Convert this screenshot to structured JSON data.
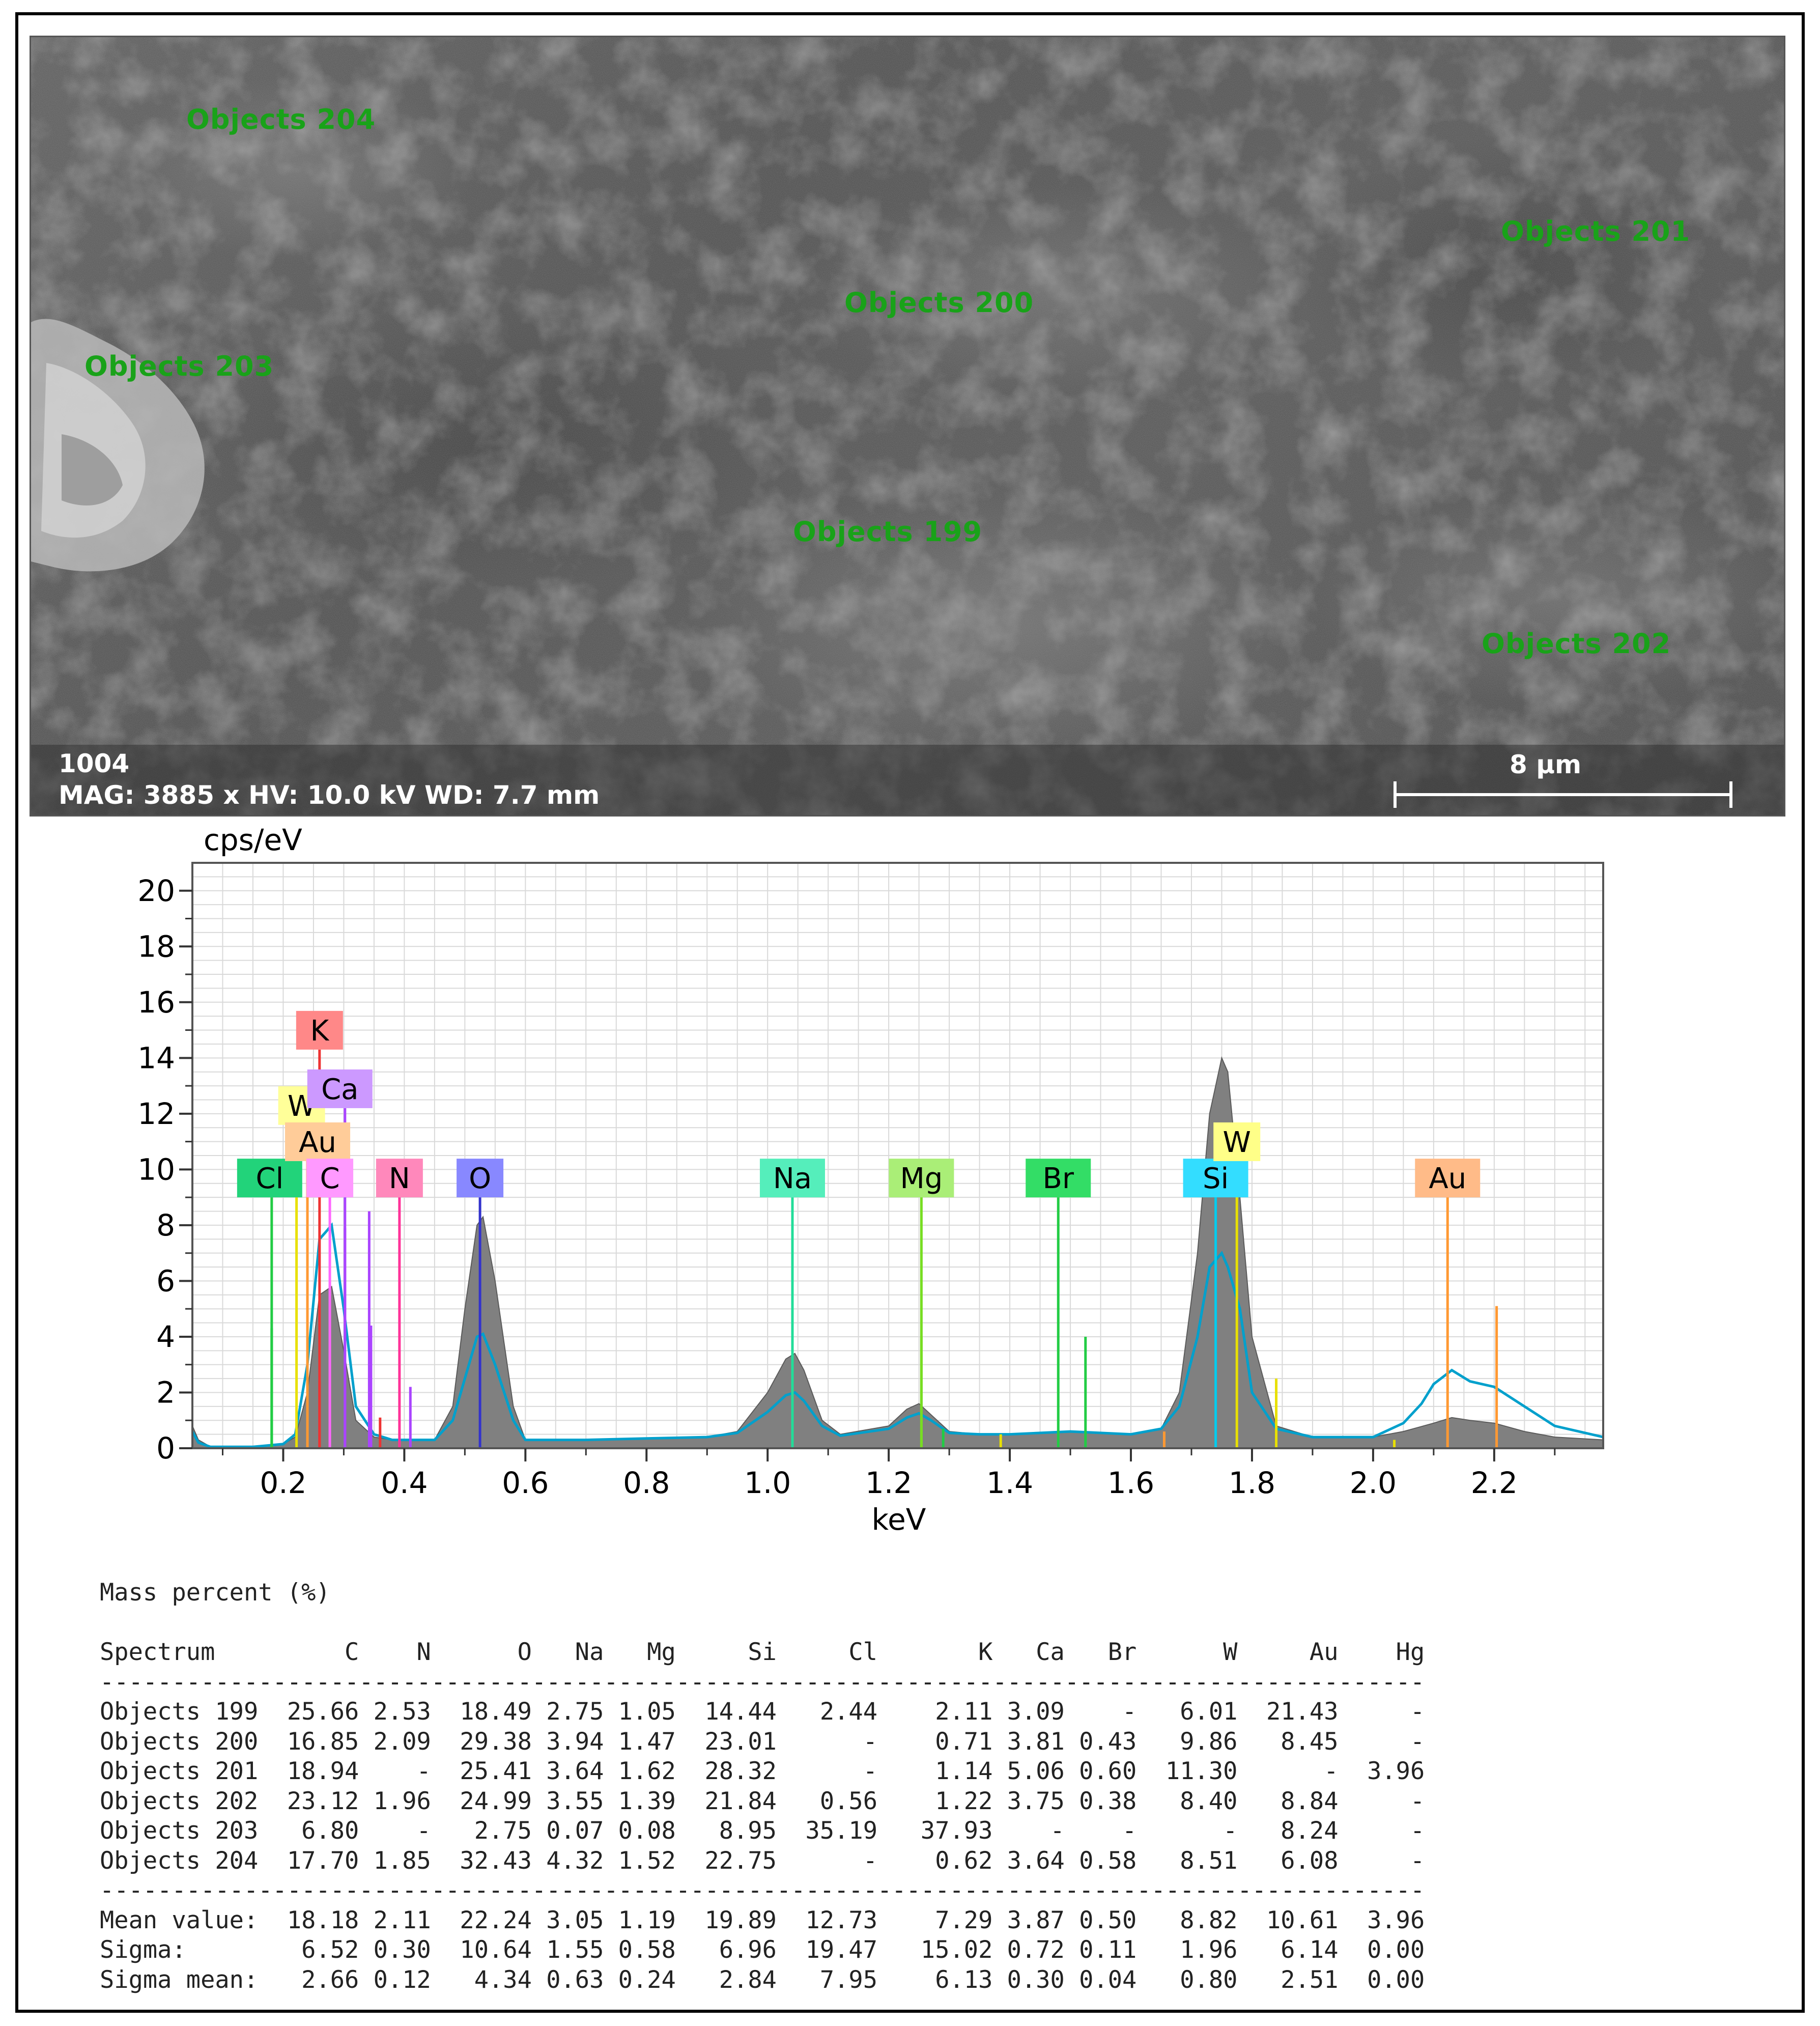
{
  "sem": {
    "objects": [
      {
        "label": "Objects 204"
      },
      {
        "label": "Objects 201"
      },
      {
        "label": "Objects 200"
      },
      {
        "label": "Objects 203"
      },
      {
        "label": "Objects 199"
      },
      {
        "label": "Objects 202"
      }
    ],
    "image_id": "1004",
    "info_line": "MAG: 3885 x  HV: 10.0 kV  WD: 7.7 mm",
    "scale_bar_label": "8 µm"
  },
  "chart_data": {
    "type": "line",
    "ylabel": "cps/eV",
    "xlabel": "keV",
    "xlim": [
      0.05,
      2.38
    ],
    "ylim": [
      0,
      21
    ],
    "xticks": [
      "0.2",
      "0.4",
      "0.6",
      "0.8",
      "1.0",
      "1.2",
      "1.4",
      "1.6",
      "1.8",
      "2.0",
      "2.2"
    ],
    "yticks": [
      "0",
      "2",
      "4",
      "6",
      "8",
      "10",
      "12",
      "14",
      "16",
      "18",
      "20"
    ],
    "grid": true,
    "series": [
      {
        "style": "filled",
        "color": "#808080",
        "x": [
          0.05,
          0.06,
          0.08,
          0.15,
          0.2,
          0.22,
          0.24,
          0.26,
          0.28,
          0.3,
          0.32,
          0.35,
          0.38,
          0.4,
          0.45,
          0.48,
          0.5,
          0.52,
          0.53,
          0.55,
          0.58,
          0.6,
          0.7,
          0.8,
          0.9,
          0.95,
          1.0,
          1.03,
          1.045,
          1.06,
          1.09,
          1.12,
          1.2,
          1.23,
          1.25,
          1.27,
          1.3,
          1.35,
          1.4,
          1.45,
          1.5,
          1.55,
          1.6,
          1.65,
          1.68,
          1.71,
          1.73,
          1.75,
          1.76,
          1.78,
          1.8,
          1.84,
          1.9,
          2.0,
          2.05,
          2.1,
          2.13,
          2.16,
          2.2,
          2.25,
          2.3,
          2.38
        ],
        "y": [
          0.8,
          0.3,
          0.05,
          0.05,
          0.15,
          0.4,
          2.0,
          5.5,
          5.8,
          3.5,
          1.0,
          0.4,
          0.3,
          0.3,
          0.3,
          1.5,
          5.0,
          8.0,
          8.3,
          6.0,
          1.5,
          0.3,
          0.3,
          0.35,
          0.4,
          0.6,
          2.0,
          3.2,
          3.4,
          2.8,
          1.0,
          0.5,
          0.8,
          1.4,
          1.6,
          1.2,
          0.6,
          0.5,
          0.5,
          0.55,
          0.6,
          0.55,
          0.5,
          0.7,
          2.0,
          7.0,
          12.0,
          14.0,
          13.5,
          9.0,
          4.0,
          0.8,
          0.4,
          0.4,
          0.6,
          0.9,
          1.1,
          1.0,
          0.9,
          0.6,
          0.4,
          0.3
        ]
      },
      {
        "style": "line",
        "color": "#00a0cc",
        "x": [
          0.05,
          0.06,
          0.08,
          0.15,
          0.2,
          0.22,
          0.24,
          0.26,
          0.28,
          0.3,
          0.32,
          0.35,
          0.38,
          0.4,
          0.45,
          0.48,
          0.5,
          0.52,
          0.53,
          0.55,
          0.58,
          0.6,
          0.7,
          0.8,
          0.9,
          0.95,
          1.0,
          1.03,
          1.045,
          1.06,
          1.09,
          1.12,
          1.2,
          1.23,
          1.25,
          1.27,
          1.3,
          1.35,
          1.4,
          1.45,
          1.5,
          1.55,
          1.6,
          1.65,
          1.68,
          1.71,
          1.73,
          1.75,
          1.76,
          1.78,
          1.8,
          1.84,
          1.9,
          2.0,
          2.05,
          2.08,
          2.1,
          2.13,
          2.16,
          2.2,
          2.25,
          2.3,
          2.38
        ],
        "y": [
          0.6,
          0.2,
          0.05,
          0.05,
          0.15,
          0.5,
          3.0,
          7.5,
          8.0,
          5.0,
          1.5,
          0.5,
          0.3,
          0.3,
          0.3,
          1.0,
          2.5,
          4.0,
          4.1,
          3.0,
          1.0,
          0.3,
          0.3,
          0.35,
          0.4,
          0.55,
          1.3,
          1.9,
          2.0,
          1.7,
          0.8,
          0.45,
          0.7,
          1.1,
          1.25,
          1.0,
          0.55,
          0.5,
          0.5,
          0.55,
          0.6,
          0.55,
          0.5,
          0.7,
          1.5,
          4.0,
          6.5,
          7.0,
          6.5,
          5.0,
          2.0,
          0.7,
          0.4,
          0.4,
          0.9,
          1.6,
          2.3,
          2.8,
          2.4,
          2.2,
          1.5,
          0.8,
          0.4
        ]
      }
    ],
    "element_lines": [
      {
        "el": "Cl",
        "x": 0.181,
        "color": "#22cc44",
        "label_color": "#22d37a"
      },
      {
        "el": "W",
        "x": 0.222,
        "color": "#e8e000",
        "label_color": "#ffff99"
      },
      {
        "el": "Au",
        "x": 0.24,
        "color": "#ff9933",
        "label_color": "#ffcc99"
      },
      {
        "el": "K",
        "x": 0.26,
        "color": "#ee3333",
        "label_color": "#ff8888"
      },
      {
        "el": "C",
        "x": 0.277,
        "color": "#ff66ff",
        "label_color": "#ff99ff"
      },
      {
        "el": "Ca",
        "x": 0.302,
        "color": "#aa44ff",
        "label_color": "#cc99ff"
      },
      {
        "el": "N",
        "x": 0.392,
        "color": "#ff3399",
        "label_color": "#ff88bb"
      },
      {
        "el": "O",
        "x": 0.525,
        "color": "#3333cc",
        "label_color": "#8888ff"
      },
      {
        "el": "Na",
        "x": 1.041,
        "color": "#22dd99",
        "label_color": "#55eebb"
      },
      {
        "el": "Mg",
        "x": 1.254,
        "color": "#77dd22",
        "label_color": "#aaee77"
      },
      {
        "el": "Br",
        "x": 1.48,
        "color": "#22cc44",
        "label_color": "#33dd66"
      },
      {
        "el": "Si",
        "x": 1.74,
        "color": "#00ccee",
        "label_color": "#33ddff"
      },
      {
        "el": "W",
        "x": 1.775,
        "color": "#e8e000",
        "label_color": "#ffff88"
      },
      {
        "el": "Au",
        "x": 2.123,
        "color": "#ff9933",
        "label_color": "#ffbb88"
      }
    ],
    "minor_lines": [
      {
        "x": 0.181,
        "y": 4.3,
        "color": "#22cc44"
      },
      {
        "x": 0.26,
        "y": 2.4,
        "color": "#ee3333"
      },
      {
        "x": 0.302,
        "y": 7.9,
        "color": "#aa44ff"
      },
      {
        "x": 0.342,
        "y": 8.5,
        "color": "#aa44ff"
      },
      {
        "x": 0.345,
        "y": 4.4,
        "color": "#aa44ff"
      },
      {
        "x": 0.36,
        "y": 1.1,
        "color": "#ee3333"
      },
      {
        "x": 0.41,
        "y": 2.2,
        "color": "#aa44ff"
      },
      {
        "x": 1.254,
        "y": 4.0,
        "color": "#77dd22"
      },
      {
        "x": 1.525,
        "y": 4.0,
        "color": "#22cc44"
      },
      {
        "x": 1.29,
        "y": 0.7,
        "color": "#22cc44"
      },
      {
        "x": 1.385,
        "y": 0.5,
        "color": "#e8e000"
      },
      {
        "x": 1.655,
        "y": 0.6,
        "color": "#ff9933"
      },
      {
        "x": 1.84,
        "y": 2.5,
        "color": "#e8e000"
      },
      {
        "x": 2.035,
        "y": 0.3,
        "color": "#e8e000"
      },
      {
        "x": 2.204,
        "y": 5.1,
        "color": "#ff9933"
      }
    ]
  },
  "table": {
    "title": "Mass percent (%)",
    "header": [
      "Spectrum",
      "C",
      "N",
      "O",
      "Na",
      "Mg",
      "Si",
      "Cl",
      "K",
      "Ca",
      "Br",
      "W",
      "Au",
      "Hg"
    ],
    "rows": [
      [
        "Objects 199",
        "25.66",
        "2.53",
        "18.49",
        "2.75",
        "1.05",
        "14.44",
        "2.44",
        "2.11",
        "3.09",
        "-",
        "6.01",
        "21.43",
        "-"
      ],
      [
        "Objects 200",
        "16.85",
        "2.09",
        "29.38",
        "3.94",
        "1.47",
        "23.01",
        "-",
        "0.71",
        "3.81",
        "0.43",
        "9.86",
        "8.45",
        "-"
      ],
      [
        "Objects 201",
        "18.94",
        "-",
        "25.41",
        "3.64",
        "1.62",
        "28.32",
        "-",
        "1.14",
        "5.06",
        "0.60",
        "11.30",
        "-",
        "3.96"
      ],
      [
        "Objects 202",
        "23.12",
        "1.96",
        "24.99",
        "3.55",
        "1.39",
        "21.84",
        "0.56",
        "1.22",
        "3.75",
        "0.38",
        "8.40",
        "8.84",
        "-"
      ],
      [
        "Objects 203",
        "6.80",
        "-",
        "2.75",
        "0.07",
        "0.08",
        "8.95",
        "35.19",
        "37.93",
        "-",
        "-",
        "-",
        "8.24",
        "-"
      ],
      [
        "Objects 204",
        "17.70",
        "1.85",
        "32.43",
        "4.32",
        "1.52",
        "22.75",
        "-",
        "0.62",
        "3.64",
        "0.58",
        "8.51",
        "6.08",
        "-"
      ]
    ],
    "stats": [
      [
        "Mean value:",
        "18.18",
        "2.11",
        "22.24",
        "3.05",
        "1.19",
        "19.89",
        "12.73",
        "7.29",
        "3.87",
        "0.50",
        "8.82",
        "10.61",
        "3.96"
      ],
      [
        "Sigma:",
        "6.52",
        "0.30",
        "10.64",
        "1.55",
        "0.58",
        "6.96",
        "19.47",
        "15.02",
        "0.72",
        "0.11",
        "1.96",
        "6.14",
        "0.00"
      ],
      [
        "Sigma mean:",
        "2.66",
        "0.12",
        "4.34",
        "0.63",
        "0.24",
        "2.84",
        "7.95",
        "6.13",
        "0.30",
        "0.04",
        "0.80",
        "2.51",
        "0.00"
      ]
    ]
  }
}
